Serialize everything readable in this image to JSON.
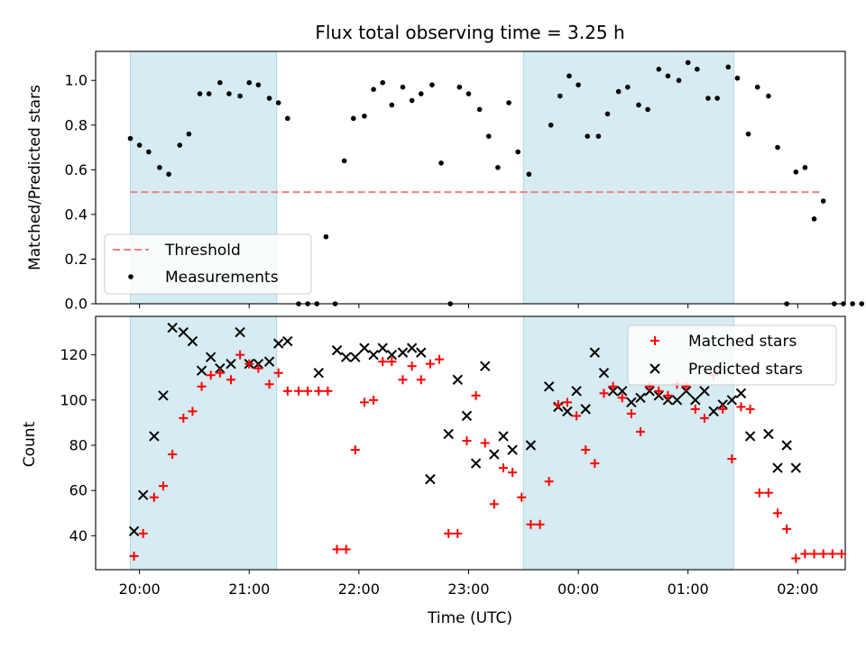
{
  "title": "Flux total observing time = 3.25 h",
  "colors": {
    "band": "#add8e6",
    "threshold": "#f08080",
    "matched": "#ff0000",
    "predicted": "#000000",
    "measurement": "#000000"
  },
  "chart_data": [
    {
      "type": "scatter",
      "panel": "top",
      "ylabel": "Matched/Predicted stars",
      "xlabel": "",
      "ylim": [
        0,
        1.13
      ],
      "yticks": [
        0.0,
        0.2,
        0.4,
        0.6,
        0.8,
        1.0
      ],
      "ytick_labels": [
        "0.0",
        "0.2",
        "0.4",
        "0.6",
        "0.8",
        "1.0"
      ],
      "legend_position": "lower-left",
      "threshold": {
        "name": "Threshold",
        "y": 0.5,
        "x_start": "19:55",
        "x_end": "02:12"
      },
      "series": [
        {
          "name": "Measurements",
          "points": [
            [
              "19:55",
              0.74
            ],
            [
              "20:00",
              0.71
            ],
            [
              "20:05",
              0.68
            ],
            [
              "20:11",
              0.61
            ],
            [
              "20:16",
              0.58
            ],
            [
              "20:22",
              0.71
            ],
            [
              "20:27",
              0.76
            ],
            [
              "20:33",
              0.94
            ],
            [
              "20:38",
              0.94
            ],
            [
              "20:44",
              0.99
            ],
            [
              "20:49",
              0.94
            ],
            [
              "20:55",
              0.93
            ],
            [
              "21:00",
              0.99
            ],
            [
              "21:05",
              0.98
            ],
            [
              "21:11",
              0.92
            ],
            [
              "21:16",
              0.9
            ],
            [
              "21:21",
              0.83
            ],
            [
              "21:27",
              0.0
            ],
            [
              "21:32",
              0.0
            ],
            [
              "21:37",
              0.0
            ],
            [
              "21:42",
              0.3
            ],
            [
              "21:47",
              0.0
            ],
            [
              "21:52",
              0.64
            ],
            [
              "21:57",
              0.83
            ],
            [
              "22:03",
              0.84
            ],
            [
              "22:08",
              0.96
            ],
            [
              "22:13",
              0.99
            ],
            [
              "22:18",
              0.89
            ],
            [
              "22:24",
              0.97
            ],
            [
              "22:29",
              0.91
            ],
            [
              "22:34",
              0.94
            ],
            [
              "22:40",
              0.98
            ],
            [
              "22:45",
              0.63
            ],
            [
              "22:50",
              0.0
            ],
            [
              "22:55",
              0.97
            ],
            [
              "23:00",
              0.94
            ],
            [
              "23:06",
              0.87
            ],
            [
              "23:11",
              0.75
            ],
            [
              "23:16",
              0.61
            ],
            [
              "23:22",
              0.9
            ],
            [
              "23:27",
              0.68
            ],
            [
              "23:33",
              0.58
            ],
            [
              "23:45",
              0.8
            ],
            [
              "23:50",
              0.93
            ],
            [
              "23:55",
              1.02
            ],
            [
              "00:00",
              0.98
            ],
            [
              "00:05",
              0.75
            ],
            [
              "00:11",
              0.75
            ],
            [
              "00:16",
              0.85
            ],
            [
              "00:22",
              0.95
            ],
            [
              "00:27",
              0.97
            ],
            [
              "00:33",
              0.89
            ],
            [
              "00:38",
              0.87
            ],
            [
              "00:44",
              1.05
            ],
            [
              "00:49",
              1.02
            ],
            [
              "00:55",
              1.0
            ],
            [
              "01:00",
              1.08
            ],
            [
              "01:05",
              1.05
            ],
            [
              "01:11",
              0.92
            ],
            [
              "01:16",
              0.92
            ],
            [
              "01:22",
              1.06
            ],
            [
              "01:27",
              1.01
            ],
            [
              "01:33",
              0.76
            ],
            [
              "01:38",
              0.97
            ],
            [
              "01:44",
              0.93
            ],
            [
              "01:49",
              0.7
            ],
            [
              "01:54",
              0.0
            ],
            [
              "01:59",
              0.59
            ],
            [
              "02:04",
              0.61
            ],
            [
              "02:09",
              0.38
            ],
            [
              "02:14",
              0.46
            ],
            [
              "02:20",
              0.0
            ],
            [
              "02:25",
              0.0
            ],
            [
              "02:30",
              0.0
            ],
            [
              "02:35",
              0.0
            ]
          ]
        }
      ]
    },
    {
      "type": "scatter",
      "panel": "bottom",
      "title": "",
      "xlabel": "Time (UTC)",
      "ylabel": "Count",
      "ylim": [
        25,
        137
      ],
      "yticks": [
        40,
        60,
        80,
        100,
        120
      ],
      "ytick_labels": [
        "40",
        "60",
        "80",
        "100",
        "120"
      ],
      "xticks": [
        "20:00",
        "21:00",
        "22:00",
        "23:00",
        "00:00",
        "01:00",
        "02:00"
      ],
      "legend_position": "top-right",
      "series": [
        {
          "name": "Matched stars",
          "marker": "+",
          "points": [
            [
              "19:57",
              31
            ],
            [
              "20:02",
              41
            ],
            [
              "20:08",
              57
            ],
            [
              "20:13",
              62
            ],
            [
              "20:18",
              76
            ],
            [
              "20:24",
              92
            ],
            [
              "20:29",
              95
            ],
            [
              "20:34",
              106
            ],
            [
              "20:39",
              111
            ],
            [
              "20:44",
              112
            ],
            [
              "20:50",
              109
            ],
            [
              "20:55",
              120
            ],
            [
              "21:00",
              116
            ],
            [
              "21:05",
              114
            ],
            [
              "21:11",
              107
            ],
            [
              "21:16",
              112
            ],
            [
              "21:21",
              104
            ],
            [
              "21:27",
              104
            ],
            [
              "21:32",
              104
            ],
            [
              "21:38",
              104
            ],
            [
              "21:43",
              104
            ],
            [
              "21:48",
              34
            ],
            [
              "21:53",
              34
            ],
            [
              "21:58",
              78
            ],
            [
              "22:03",
              99
            ],
            [
              "22:08",
              100
            ],
            [
              "22:13",
              117
            ],
            [
              "22:18",
              117
            ],
            [
              "22:24",
              109
            ],
            [
              "22:29",
              115
            ],
            [
              "22:34",
              109
            ],
            [
              "22:39",
              116
            ],
            [
              "22:44",
              118
            ],
            [
              "22:49",
              41
            ],
            [
              "22:54",
              41
            ],
            [
              "22:59",
              82
            ],
            [
              "23:04",
              102
            ],
            [
              "23:09",
              81
            ],
            [
              "23:14",
              54
            ],
            [
              "23:19",
              70
            ],
            [
              "23:24",
              68
            ],
            [
              "23:29",
              57
            ],
            [
              "23:34",
              45
            ],
            [
              "23:39",
              45
            ],
            [
              "23:44",
              64
            ],
            [
              "23:49",
              98
            ],
            [
              "23:54",
              99
            ],
            [
              "23:59",
              93
            ],
            [
              "00:04",
              78
            ],
            [
              "00:09",
              72
            ],
            [
              "00:14",
              103
            ],
            [
              "00:19",
              106
            ],
            [
              "00:24",
              101
            ],
            [
              "00:29",
              94
            ],
            [
              "00:34",
              86
            ],
            [
              "00:39",
              106
            ],
            [
              "00:44",
              104
            ],
            [
              "00:49",
              102
            ],
            [
              "00:54",
              107
            ],
            [
              "00:59",
              106
            ],
            [
              "01:04",
              96
            ],
            [
              "01:09",
              92
            ],
            [
              "01:14",
              111
            ],
            [
              "01:19",
              96
            ],
            [
              "01:24",
              74
            ],
            [
              "01:29",
              97
            ],
            [
              "01:34",
              96
            ],
            [
              "01:39",
              59
            ],
            [
              "01:44",
              59
            ],
            [
              "01:49",
              50
            ],
            [
              "01:54",
              43
            ],
            [
              "01:59",
              30
            ],
            [
              "02:04",
              32
            ],
            [
              "02:09",
              32
            ],
            [
              "02:14",
              32
            ],
            [
              "02:19",
              32
            ],
            [
              "02:24",
              32
            ]
          ]
        },
        {
          "name": "Predicted stars",
          "marker": "x",
          "points": [
            [
              "19:57",
              42
            ],
            [
              "20:02",
              58
            ],
            [
              "20:08",
              84
            ],
            [
              "20:13",
              102
            ],
            [
              "20:18",
              132
            ],
            [
              "20:24",
              130
            ],
            [
              "20:29",
              126
            ],
            [
              "20:34",
              113
            ],
            [
              "20:39",
              119
            ],
            [
              "20:44",
              114
            ],
            [
              "20:50",
              116
            ],
            [
              "20:55",
              130
            ],
            [
              "21:00",
              116
            ],
            [
              "21:05",
              116
            ],
            [
              "21:11",
              117
            ],
            [
              "21:16",
              125
            ],
            [
              "21:21",
              126
            ],
            [
              "21:38",
              112
            ],
            [
              "21:48",
              122
            ],
            [
              "21:53",
              119
            ],
            [
              "21:58",
              119
            ],
            [
              "22:03",
              123
            ],
            [
              "22:08",
              120
            ],
            [
              "22:13",
              123
            ],
            [
              "22:18",
              120
            ],
            [
              "22:24",
              121
            ],
            [
              "22:29",
              123
            ],
            [
              "22:34",
              121
            ],
            [
              "22:39",
              65
            ],
            [
              "22:49",
              85
            ],
            [
              "22:54",
              109
            ],
            [
              "22:59",
              93
            ],
            [
              "23:04",
              72
            ],
            [
              "23:09",
              115
            ],
            [
              "23:14",
              76
            ],
            [
              "23:19",
              84
            ],
            [
              "23:24",
              78
            ],
            [
              "23:34",
              80
            ],
            [
              "23:44",
              106
            ],
            [
              "23:49",
              97
            ],
            [
              "23:54",
              95
            ],
            [
              "23:59",
              104
            ],
            [
              "00:04",
              96
            ],
            [
              "00:09",
              121
            ],
            [
              "00:14",
              112
            ],
            [
              "00:19",
              104
            ],
            [
              "00:24",
              104
            ],
            [
              "00:29",
              99
            ],
            [
              "00:34",
              101
            ],
            [
              "00:39",
              104
            ],
            [
              "00:44",
              102
            ],
            [
              "00:49",
              100
            ],
            [
              "00:54",
              100
            ],
            [
              "00:59",
              104
            ],
            [
              "01:04",
              100
            ],
            [
              "01:09",
              104
            ],
            [
              "01:14",
              95
            ],
            [
              "01:19",
              98
            ],
            [
              "01:24",
              100
            ],
            [
              "01:29",
              103
            ],
            [
              "01:34",
              84
            ],
            [
              "01:44",
              85
            ],
            [
              "01:49",
              70
            ],
            [
              "01:54",
              80
            ],
            [
              "01:59",
              70
            ]
          ]
        }
      ]
    }
  ],
  "observing_windows": [
    {
      "start": "19:55",
      "end": "21:15"
    },
    {
      "start": "23:30",
      "end": "01:25"
    }
  ]
}
